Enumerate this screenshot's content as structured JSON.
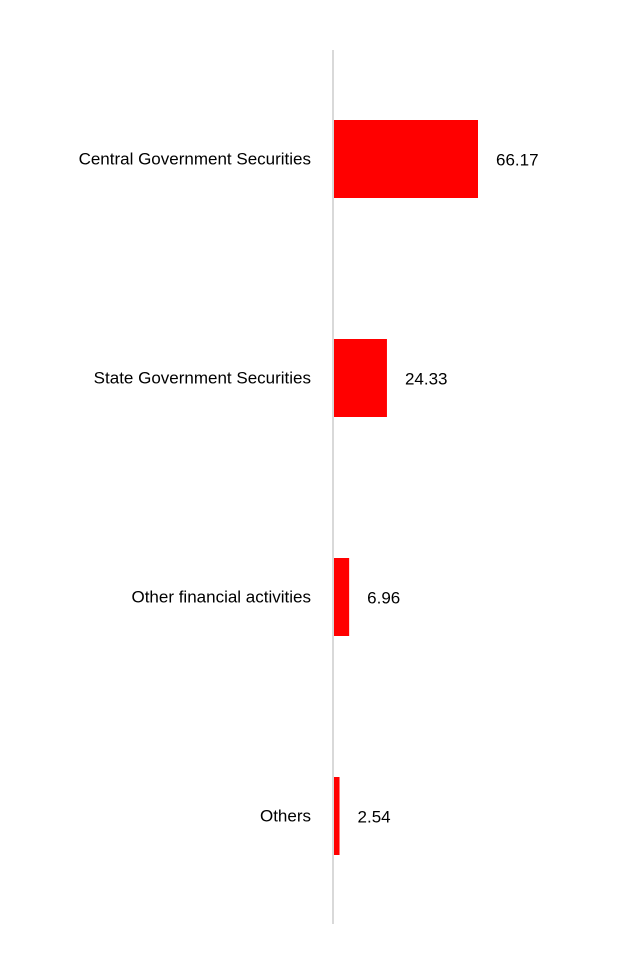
{
  "colors": {
    "bar": "#ff0000",
    "axis": "#d9d9d9",
    "text": "#000000",
    "background": "#ffffff"
  },
  "chart_data": {
    "type": "bar",
    "orientation": "horizontal",
    "categories": [
      "Central Government Securities",
      "State Government Securities",
      "Other financial activities",
      "Others"
    ],
    "values": [
      66.17,
      24.33,
      6.96,
      2.54
    ],
    "value_labels": [
      "66.17",
      "24.33",
      "6.96",
      "2.54"
    ],
    "title": "",
    "xlabel": "",
    "ylabel": "",
    "xlim": [
      0,
      100
    ],
    "grid": false,
    "legend": "none"
  }
}
